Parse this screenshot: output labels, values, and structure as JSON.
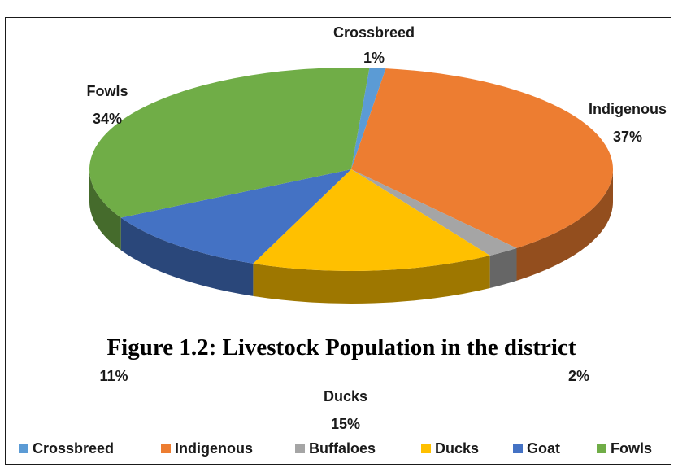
{
  "chart_data": {
    "type": "pie",
    "title": "",
    "caption": "Figure 1.2: Livestock Population in the district",
    "slices": [
      {
        "label": "Crossbreed",
        "value": 1,
        "value_label": "1%",
        "color": "#5b9bd5"
      },
      {
        "label": "Indigenous",
        "value": 37,
        "value_label": "37%",
        "color": "#ed7d31"
      },
      {
        "label": "Buffaloes",
        "value": 2,
        "value_label": "2%",
        "color": "#a5a5a5"
      },
      {
        "label": "Ducks",
        "value": 15,
        "value_label": "15%",
        "color": "#ffc000"
      },
      {
        "label": "Goat",
        "value": 11,
        "value_label": "11%",
        "color": "#4472c4"
      },
      {
        "label": "Fowls",
        "value": 34,
        "value_label": "34%",
        "color": "#70ad47"
      }
    ],
    "legend": {
      "placement": "bottom",
      "items": [
        "Crossbreed",
        "Indigenous",
        "Buffaloes",
        "Ducks",
        "Goat",
        "Fowls"
      ]
    },
    "style": "3d-exploded-pie"
  }
}
